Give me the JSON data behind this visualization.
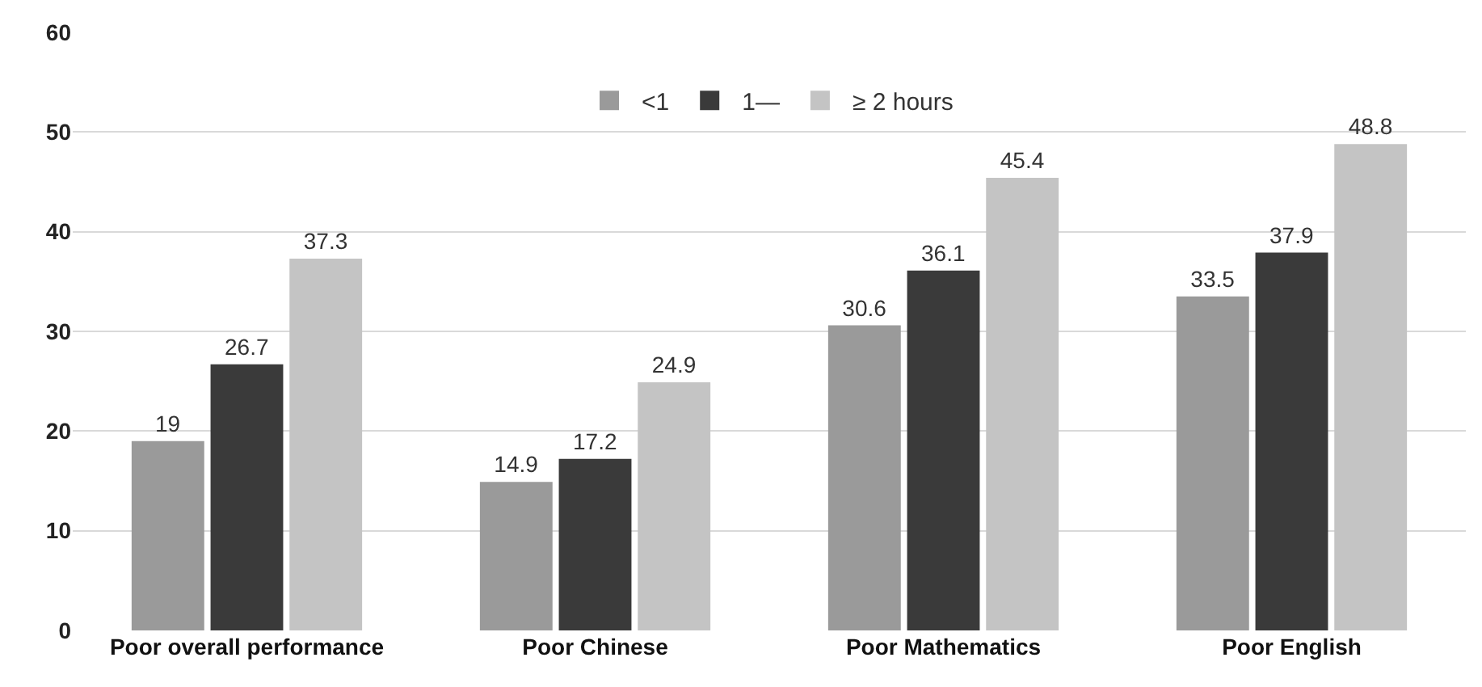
{
  "chart_data": {
    "type": "bar",
    "categories": [
      "Poor overall performance",
      "Poor Chinese",
      "Poor Mathematics",
      "Poor English"
    ],
    "series": [
      {
        "name": "<1",
        "color": "#9a9a9a",
        "values": [
          19,
          14.9,
          30.6,
          33.5
        ]
      },
      {
        "name": "1—",
        "color": "#3a3a3a",
        "values": [
          26.7,
          17.2,
          36.1,
          37.9
        ]
      },
      {
        "name": "≥ 2 hours",
        "color": "#c4c4c4",
        "values": [
          37.3,
          24.9,
          45.4,
          48.8
        ]
      }
    ],
    "ylim": [
      0,
      60
    ],
    "yticks": [
      0,
      10,
      20,
      30,
      40,
      50,
      60
    ],
    "grid": "y",
    "legend": "top",
    "data_labels": true
  }
}
